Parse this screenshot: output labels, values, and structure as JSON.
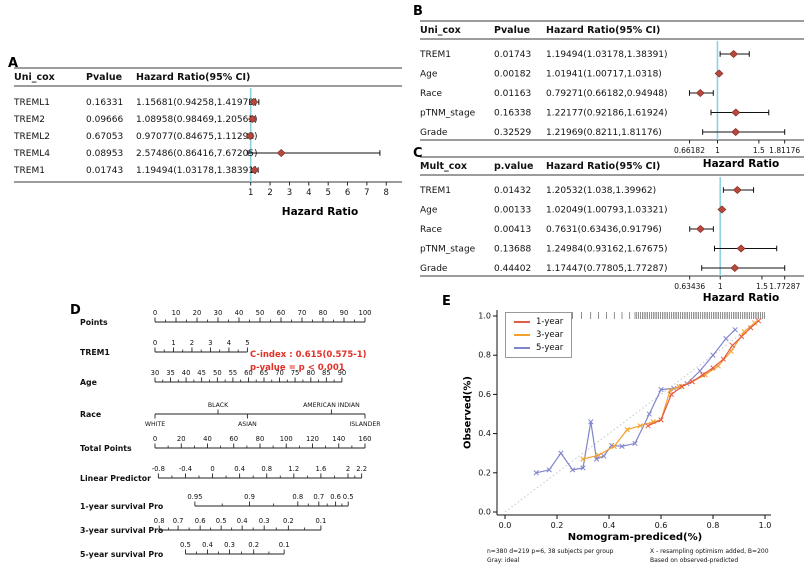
{
  "style": {
    "marker_color": "#b5493f",
    "marker_stroke": "#7c2d22",
    "refline_color": "#8ed2e2",
    "cindex_color": "#e03127",
    "ideal_color": "#c6c6c6",
    "rug_color": "#222222"
  },
  "panel_labels": {
    "a": "A",
    "b": "B",
    "c": "C",
    "d": "D",
    "e": "E"
  },
  "chart_data": {
    "a": {
      "type": "forest",
      "headers": [
        "Uni_cox",
        "Pvalue",
        "Hazard Ratio(95% CI)"
      ],
      "rows": [
        {
          "name": "TREML1",
          "pvalue": "0.16331",
          "ci": "1.15681(0.94258,1.41973)",
          "hr": 1.15681,
          "lo": 0.94258,
          "hi": 1.41973
        },
        {
          "name": "TREM2",
          "pvalue": "0.09666",
          "ci": "1.08958(0.98469,1.20563)",
          "hr": 1.08958,
          "lo": 0.98469,
          "hi": 1.20563
        },
        {
          "name": "TREML2",
          "pvalue": "0.67053",
          "ci": "0.97077(0.84675,1.11295)",
          "hr": 0.97077,
          "lo": 0.84675,
          "hi": 1.11295
        },
        {
          "name": "TREML4",
          "pvalue": "0.08953",
          "ci": "2.57486(0.86416,7.67205)",
          "hr": 2.57486,
          "lo": 0.86416,
          "hi": 7.67205
        },
        {
          "name": "TREM1",
          "pvalue": "0.01743",
          "ci": "1.19494(1.03178,1.38391)",
          "hr": 1.19494,
          "lo": 1.03178,
          "hi": 1.38391
        }
      ],
      "refline": 1,
      "axis_ticks": [
        {
          "v": 1,
          "label": "1"
        },
        {
          "v": 2,
          "label": "2"
        },
        {
          "v": 3,
          "label": "3"
        },
        {
          "v": 4,
          "label": "4"
        },
        {
          "v": 5,
          "label": "5"
        },
        {
          "v": 6,
          "label": "6"
        },
        {
          "v": 7,
          "label": "7"
        },
        {
          "v": 8,
          "label": "8"
        }
      ],
      "axis_label": "Hazard Ratio"
    },
    "b": {
      "type": "forest",
      "headers": [
        "Uni_cox",
        "Pvalue",
        "Hazard Ratio(95% CI)"
      ],
      "rows": [
        {
          "name": "TREM1",
          "pvalue": "0.01743",
          "ci": "1.19494(1.03178,1.38391)",
          "hr": 1.19494,
          "lo": 1.03178,
          "hi": 1.38391
        },
        {
          "name": "Age",
          "pvalue": "0.00182",
          "ci": "1.01941(1.00717,1.0318)",
          "hr": 1.01941,
          "lo": 1.00717,
          "hi": 1.0318
        },
        {
          "name": "Race",
          "pvalue": "0.01163",
          "ci": "0.79271(0.66182,0.94948)",
          "hr": 0.79271,
          "lo": 0.66182,
          "hi": 0.94948
        },
        {
          "name": "pTNM_stage",
          "pvalue": "0.16338",
          "ci": "1.22177(0.92186,1.61924)",
          "hr": 1.22177,
          "lo": 0.92186,
          "hi": 1.61924
        },
        {
          "name": "Grade",
          "pvalue": "0.32529",
          "ci": "1.21969(0.8211,1.81176)",
          "hr": 1.21969,
          "lo": 0.8211,
          "hi": 1.81176
        }
      ],
      "refline": 1,
      "axis_ticks": [
        {
          "v": 0.66182,
          "label": "0.66182"
        },
        {
          "v": 1,
          "label": "1"
        },
        {
          "v": 1.5,
          "label": "1.5"
        },
        {
          "v": 1.81176,
          "label": "1.81176"
        }
      ],
      "axis_label": "Hazard Ratio"
    },
    "c": {
      "type": "forest",
      "headers": [
        "Mult_cox",
        "p.value",
        "Hazard Ratio(95% CI)"
      ],
      "rows": [
        {
          "name": "TREM1",
          "pvalue": "0.01432",
          "ci": "1.20532(1.038,1.39962)",
          "hr": 1.20532,
          "lo": 1.038,
          "hi": 1.39962
        },
        {
          "name": "Age",
          "pvalue": "0.00133",
          "ci": "1.02049(1.00793,1.03321)",
          "hr": 1.02049,
          "lo": 1.00793,
          "hi": 1.03321
        },
        {
          "name": "Race",
          "pvalue": "0.00413",
          "ci": "0.7631(0.63436,0.91796)",
          "hr": 0.7631,
          "lo": 0.63436,
          "hi": 0.91796
        },
        {
          "name": "pTNM_stage",
          "pvalue": "0.13688",
          "ci": "1.24984(0.93162,1.67675)",
          "hr": 1.24984,
          "lo": 0.93162,
          "hi": 1.67675
        },
        {
          "name": "Grade",
          "pvalue": "0.44402",
          "ci": "1.17447(0.77805,1.77287)",
          "hr": 1.17447,
          "lo": 0.77805,
          "hi": 1.77287
        }
      ],
      "refline": 1,
      "axis_ticks": [
        {
          "v": 0.63436,
          "label": "0.63436"
        },
        {
          "v": 1,
          "label": "1"
        },
        {
          "v": 1.5,
          "label": "1.5"
        },
        {
          "v": 1.77287,
          "label": "1.77287"
        }
      ],
      "axis_label": "Hazard Ratio"
    },
    "d": {
      "type": "nomogram",
      "cindex_line1": "C-index : 0.615(0.575-1)",
      "cindex_line2": "p-value = p < 0.001",
      "rows": [
        {
          "label": "Points",
          "minor": true,
          "ticks": [
            {
              "label": "0",
              "f": 0
            },
            {
              "label": "10",
              "f": 0.1
            },
            {
              "label": "20",
              "f": 0.2
            },
            {
              "label": "30",
              "f": 0.3
            },
            {
              "label": "40",
              "f": 0.4
            },
            {
              "label": "50",
              "f": 0.5
            },
            {
              "label": "60",
              "f": 0.6
            },
            {
              "label": "70",
              "f": 0.7
            },
            {
              "label": "80",
              "f": 0.8
            },
            {
              "label": "90",
              "f": 0.9
            },
            {
              "label": "100",
              "f": 1
            }
          ]
        },
        {
          "label": "TREM1",
          "minor": true,
          "ticks": [
            {
              "label": "0",
              "f": 0
            },
            {
              "label": "1",
              "f": 0.088
            },
            {
              "label": "2",
              "f": 0.176
            },
            {
              "label": "3",
              "f": 0.264
            },
            {
              "label": "4",
              "f": 0.352
            },
            {
              "label": "5",
              "f": 0.44
            }
          ]
        },
        {
          "label": "Age",
          "minor": true,
          "ticks": [
            {
              "label": "30",
              "f": 0
            },
            {
              "label": "35",
              "f": 0.074
            },
            {
              "label": "40",
              "f": 0.148
            },
            {
              "label": "45",
              "f": 0.222
            },
            {
              "label": "50",
              "f": 0.297
            },
            {
              "label": "55",
              "f": 0.371
            },
            {
              "label": "60",
              "f": 0.445
            },
            {
              "label": "65",
              "f": 0.519
            },
            {
              "label": "70",
              "f": 0.593
            },
            {
              "label": "75",
              "f": 0.667
            },
            {
              "label": "80",
              "f": 0.742
            },
            {
              "label": "85",
              "f": 0.816
            },
            {
              "label": "90",
              "f": 0.89
            }
          ]
        },
        {
          "label": "Race",
          "ticks": [
            {
              "label": "WHITE",
              "f": 0,
              "pos": "below"
            },
            {
              "label": "BLACK",
              "f": 0.3,
              "pos": "above"
            },
            {
              "label": "ASIAN",
              "f": 0.44,
              "pos": "below"
            },
            {
              "label": "AMERICAN INDIAN",
              "f": 0.84,
              "pos": "above"
            },
            {
              "label": "ISLANDER",
              "f": 1,
              "pos": "below"
            }
          ]
        },
        {
          "label": "Total Points",
          "minor": true,
          "ticks": [
            {
              "label": "0",
              "f": 0
            },
            {
              "label": "20",
              "f": 0.125
            },
            {
              "label": "40",
              "f": 0.25
            },
            {
              "label": "60",
              "f": 0.375
            },
            {
              "label": "80",
              "f": 0.5
            },
            {
              "label": "100",
              "f": 0.625
            },
            {
              "label": "120",
              "f": 0.75
            },
            {
              "label": "140",
              "f": 0.875
            },
            {
              "label": "160",
              "f": 1
            }
          ]
        },
        {
          "label": "Linear Predictor",
          "minor": true,
          "ticks": [
            {
              "label": "-0.8",
              "f": 0.016
            },
            {
              "label": "-0.4",
              "f": 0.145
            },
            {
              "label": "0",
              "f": 0.274
            },
            {
              "label": "0.4",
              "f": 0.403
            },
            {
              "label": "0.8",
              "f": 0.532
            },
            {
              "label": "1.2",
              "f": 0.661
            },
            {
              "label": "1.6",
              "f": 0.79
            },
            {
              "label": "2",
              "f": 0.919
            },
            {
              "label": "2.2",
              "f": 0.984
            }
          ]
        },
        {
          "label": "1-year survival Pro",
          "minor": true,
          "ticks": [
            {
              "label": "0.95",
              "f": 0.19
            },
            {
              "label": "0.9",
              "f": 0.45
            },
            {
              "label": "0.8",
              "f": 0.68
            },
            {
              "label": "0.7",
              "f": 0.78
            },
            {
              "label": "0.6",
              "f": 0.86
            },
            {
              "label": "0.5",
              "f": 0.92
            }
          ]
        },
        {
          "label": "3-year survival Pro",
          "minor": true,
          "ticks": [
            {
              "label": "0.8",
              "f": 0.02
            },
            {
              "label": "0.7",
              "f": 0.11
            },
            {
              "label": "0.6",
              "f": 0.215
            },
            {
              "label": "0.5",
              "f": 0.315
            },
            {
              "label": "0.4",
              "f": 0.415
            },
            {
              "label": "0.3",
              "f": 0.52
            },
            {
              "label": "0.2",
              "f": 0.635
            },
            {
              "label": "0.1",
              "f": 0.79
            }
          ]
        },
        {
          "label": "5-year survival Pro",
          "minor": true,
          "ticks": [
            {
              "label": "0.5",
              "f": 0.145
            },
            {
              "label": "0.4",
              "f": 0.25
            },
            {
              "label": "0.3",
              "f": 0.355
            },
            {
              "label": "0.2",
              "f": 0.47
            },
            {
              "label": "0.1",
              "f": 0.615
            }
          ]
        }
      ]
    },
    "e": {
      "type": "line",
      "xlabel": "Nomogram-prediced(%)",
      "ylabel": "Observed(%)",
      "x_ticks": [
        "0.0",
        "0.2",
        "0.4",
        "0.6",
        "0.8",
        "1.0"
      ],
      "y_ticks": [
        "0.0",
        "0.2",
        "0.4",
        "0.6",
        "0.8",
        "1.0"
      ],
      "xlim": [
        0,
        1
      ],
      "ylim": [
        0,
        1
      ],
      "legend_position": "top-left",
      "series": [
        {
          "name": "1-year",
          "color": "#e45b43",
          "points": [
            [
              0.55,
              0.44
            ],
            [
              0.6,
              0.47
            ],
            [
              0.64,
              0.6
            ],
            [
              0.68,
              0.64
            ],
            [
              0.72,
              0.665
            ],
            [
              0.76,
              0.7
            ],
            [
              0.8,
              0.735
            ],
            [
              0.84,
              0.78
            ],
            [
              0.875,
              0.85
            ],
            [
              0.91,
              0.895
            ],
            [
              0.945,
              0.94
            ],
            [
              0.975,
              0.975
            ]
          ]
        },
        {
          "name": "3-year",
          "color": "#f2a12e",
          "points": [
            [
              0.3,
              0.27
            ],
            [
              0.36,
              0.29
            ],
            [
              0.42,
              0.335
            ],
            [
              0.47,
              0.42
            ],
            [
              0.52,
              0.44
            ],
            [
              0.57,
              0.46
            ],
            [
              0.6,
              0.47
            ],
            [
              0.635,
              0.62
            ],
            [
              0.67,
              0.64
            ],
            [
              0.72,
              0.665
            ],
            [
              0.77,
              0.7
            ],
            [
              0.82,
              0.745
            ],
            [
              0.87,
              0.82
            ],
            [
              0.92,
              0.92
            ],
            [
              0.96,
              0.965
            ]
          ]
        },
        {
          "name": "5-year",
          "color": "#8084cc",
          "points": [
            [
              0.12,
              0.2
            ],
            [
              0.17,
              0.215
            ],
            [
              0.215,
              0.3
            ],
            [
              0.26,
              0.215
            ],
            [
              0.3,
              0.225
            ],
            [
              0.33,
              0.46
            ],
            [
              0.352,
              0.27
            ],
            [
              0.38,
              0.285
            ],
            [
              0.41,
              0.34
            ],
            [
              0.45,
              0.335
            ],
            [
              0.5,
              0.35
            ],
            [
              0.555,
              0.5
            ],
            [
              0.6,
              0.625
            ],
            [
              0.65,
              0.63
            ],
            [
              0.7,
              0.655
            ],
            [
              0.75,
              0.72
            ],
            [
              0.8,
              0.8
            ],
            [
              0.85,
              0.885
            ],
            [
              0.885,
              0.93
            ]
          ]
        }
      ],
      "rug": [
        0.11,
        0.14,
        0.18,
        0.22,
        0.26,
        0.295,
        0.33,
        0.36,
        0.39,
        0.42,
        0.45,
        0.48,
        0.5,
        0.507,
        0.514,
        0.521,
        0.528,
        0.535,
        0.542,
        0.549,
        0.556,
        0.563,
        0.57,
        0.577,
        0.584,
        0.591,
        0.598,
        0.605,
        0.612,
        0.619,
        0.626,
        0.633,
        0.64,
        0.647,
        0.654,
        0.661,
        0.668,
        0.675,
        0.682,
        0.689,
        0.696,
        0.703,
        0.71,
        0.717,
        0.724,
        0.731,
        0.738,
        0.745,
        0.752,
        0.759,
        0.766,
        0.773,
        0.78,
        0.787,
        0.794,
        0.801,
        0.808,
        0.815,
        0.822,
        0.829,
        0.836,
        0.843,
        0.85,
        0.857,
        0.864,
        0.871,
        0.878,
        0.885,
        0.892,
        0.899,
        0.906,
        0.913,
        0.92,
        0.927,
        0.934,
        0.941,
        0.948,
        0.955,
        0.962,
        0.969,
        0.976,
        0.983,
        0.99,
        0.997
      ],
      "notes_left": [
        "n=380 d=219 p=6, 38 subjects per group",
        "Gray: ideal"
      ],
      "notes_right": [
        "X - resampling optimism added, B=200",
        "Based on observed-predicted"
      ]
    }
  }
}
